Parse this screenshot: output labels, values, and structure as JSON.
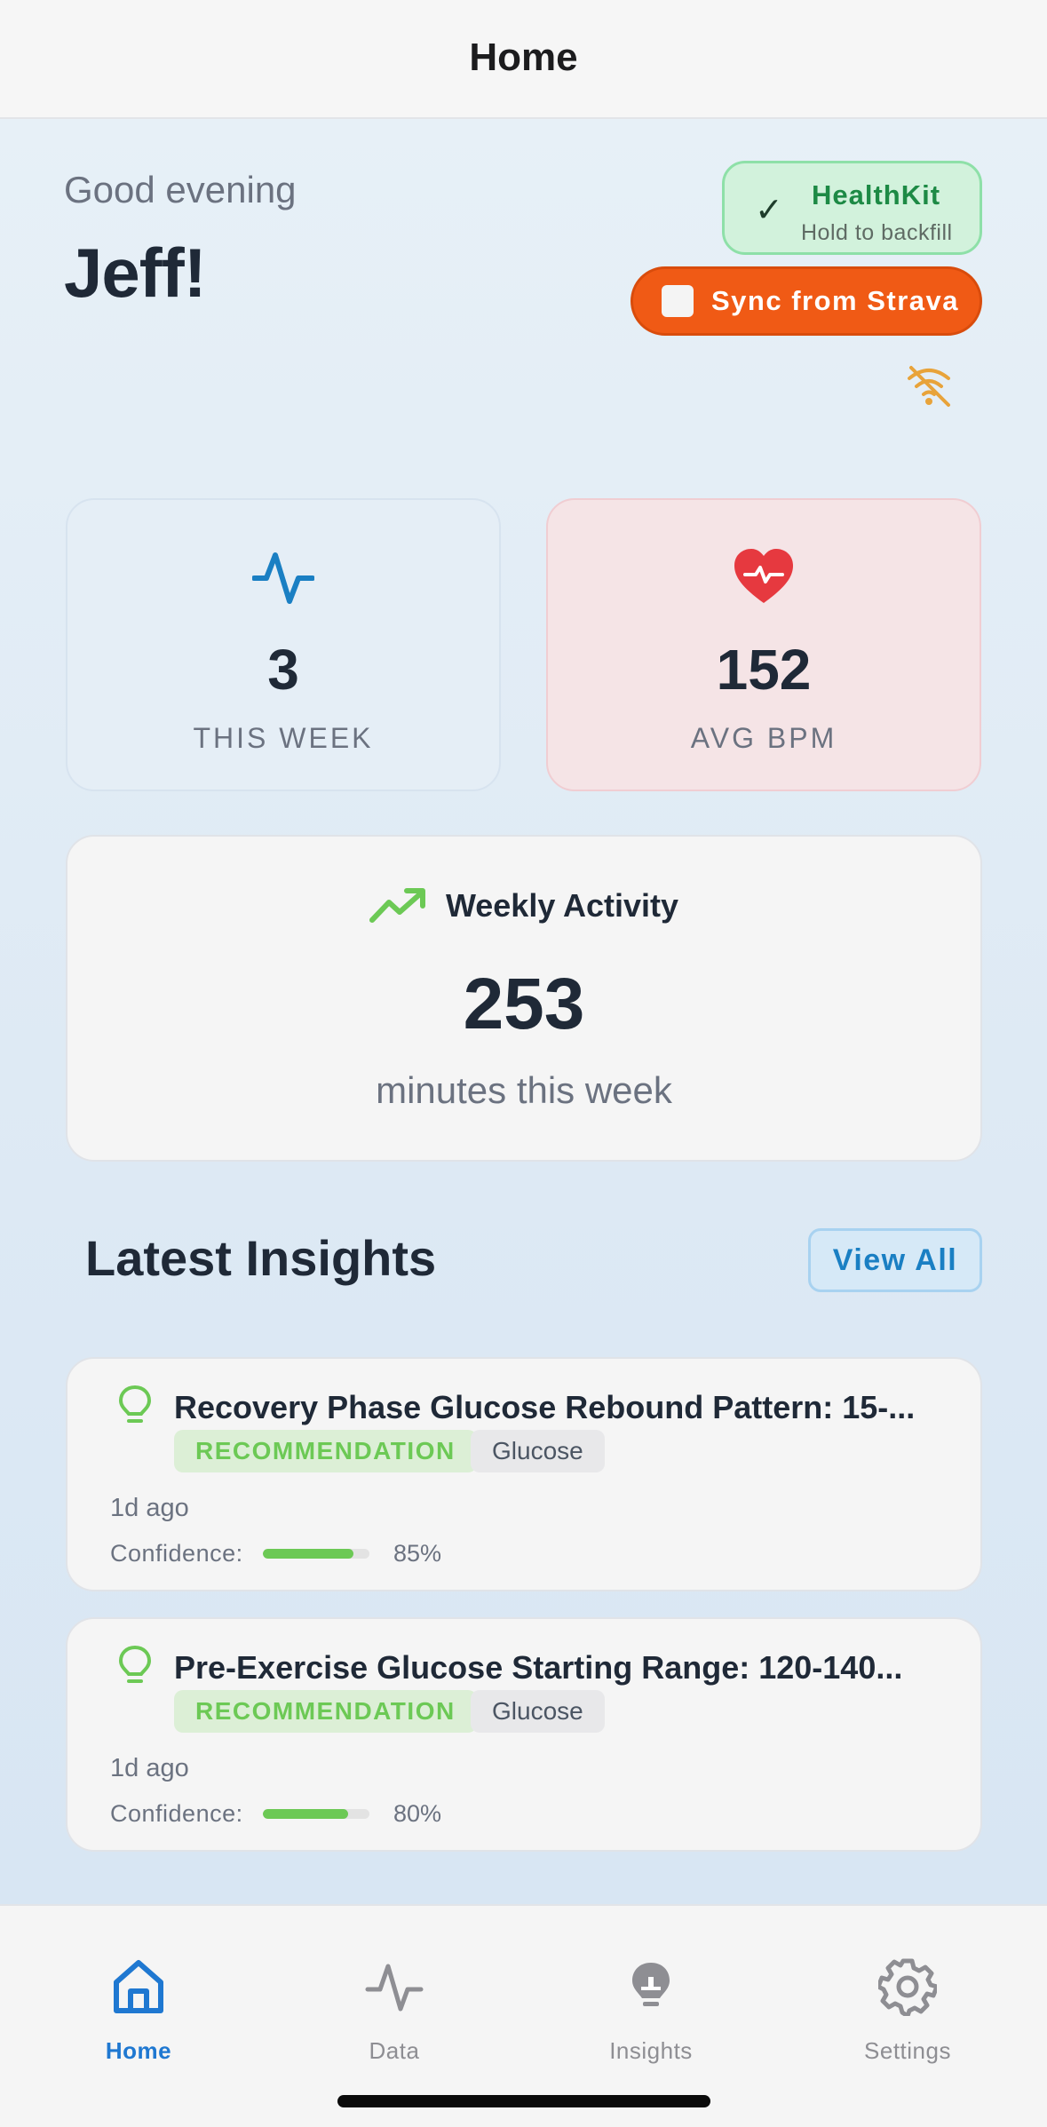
{
  "nav": {
    "title": "Home"
  },
  "greeting": {
    "salutation": "Good evening",
    "name": "Jeff!"
  },
  "healthkit": {
    "title": "HealthKit",
    "subtitle": "Hold to backfill",
    "status_icon": "checkmark-icon"
  },
  "strava": {
    "label": "Sync from Strava"
  },
  "connection": {
    "icon": "wifi-off-icon",
    "color": "#e8a33a"
  },
  "stats": {
    "week": {
      "value": "3",
      "label": "THIS WEEK",
      "icon": "activity-pulse-icon",
      "color": "#1a7fc3"
    },
    "bpm": {
      "value": "152",
      "label": "AVG BPM",
      "icon": "heart-pulse-icon",
      "color": "#e6393f"
    }
  },
  "weekly_activity": {
    "title": "Weekly Activity",
    "value": "253",
    "unit": "minutes this week",
    "icon": "trending-up-icon"
  },
  "insights": {
    "title": "Latest Insights",
    "view_all": "View All",
    "items": [
      {
        "title": "Recovery Phase Glucose Rebound Pattern: 15-...",
        "type": "RECOMMENDATION",
        "category": "Glucose",
        "time": "1d ago",
        "confidence_label": "Confidence:",
        "confidence_pct": "85%",
        "confidence": 0.85
      },
      {
        "title": "Pre-Exercise Glucose Starting Range: 120-140...",
        "type": "RECOMMENDATION",
        "category": "Glucose",
        "time": "1d ago",
        "confidence_label": "Confidence:",
        "confidence_pct": "80%",
        "confidence": 0.8
      }
    ]
  },
  "tabs": [
    {
      "label": "Home",
      "icon": "home-icon",
      "active": true
    },
    {
      "label": "Data",
      "icon": "activity-icon",
      "active": false
    },
    {
      "label": "Insights",
      "icon": "lightbulb-icon",
      "active": false
    },
    {
      "label": "Settings",
      "icon": "gear-icon",
      "active": false
    }
  ],
  "colors": {
    "accent": "#1f78d1",
    "strava": "#f05a15",
    "success": "#6cc955"
  }
}
